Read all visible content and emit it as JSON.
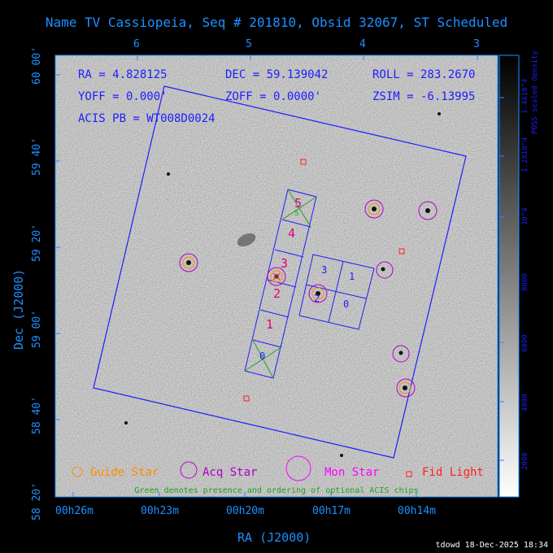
{
  "title": "Name TV Cassiopeia, Seq # 201810, Obsid 32067, ST Scheduled",
  "info": {
    "ra": "RA = 4.828125",
    "dec": "DEC = 59.139042",
    "roll": "ROLL = 283.2670",
    "yoff": "YOFF =   0.000'",
    "zoff": "ZOFF =   0.0000'",
    "zsim": "ZSIM = -6.13995",
    "acis": "ACIS PB = WT008D0024"
  },
  "top_axis_ticks": [
    "6",
    "5",
    "4",
    "3"
  ],
  "left_axis_ticks": [
    "60 00'",
    "59 40'",
    "59 20'",
    "59 00'",
    "58 40'",
    "58 20'"
  ],
  "bottom_axis_ticks": [
    "00h26m",
    "00h23m",
    "00h20m",
    "00h17m",
    "00h14m"
  ],
  "xlabel": "RA (J2000)",
  "ylabel": "Dec (J2000)",
  "colorbar": {
    "label": "POSS scaled density",
    "ticks": [
      "2000",
      "4000",
      "6000",
      "8000",
      "10^4",
      "1.2X10^4",
      "1.4X10^4"
    ]
  },
  "chips": {
    "s_labels": [
      "0",
      "1",
      "2",
      "3",
      "4",
      "5"
    ],
    "i_labels": [
      "3",
      "1",
      "2",
      "0"
    ]
  },
  "legend": {
    "guide": "Guide Star",
    "acq": "Acq Star",
    "mon": "Mon Star",
    "fid": "Fid Light",
    "note": "Green denotes presence and ordering of optional ACIS chips"
  },
  "colors": {
    "blue": "#1e1eff",
    "guide": "#ff8c00",
    "acq": "#b000c8",
    "mon": "#ff00ff",
    "fid": "#ff2020",
    "green": "#20a020",
    "label_blue": "#1e90ff"
  },
  "footer": "tdowd 18-Dec-2025 18:34"
}
